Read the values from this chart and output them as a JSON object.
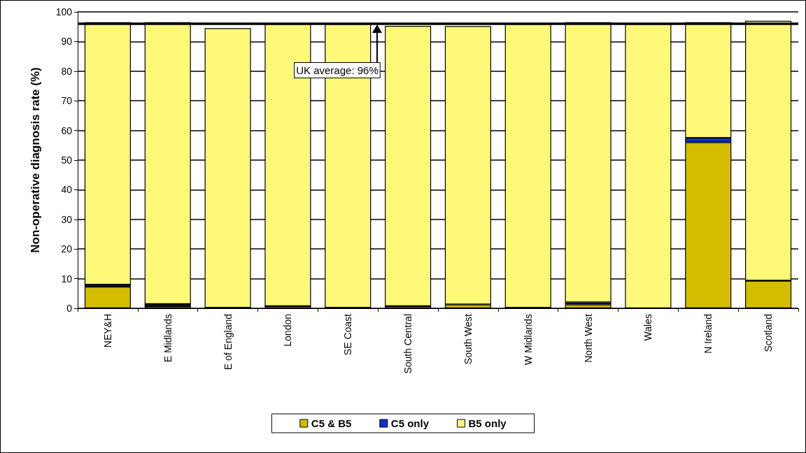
{
  "chart_data": {
    "type": "bar",
    "stacked": true,
    "ylabel": "Non-operative diagnosis rate (%)",
    "categories": [
      "NEY&H",
      "E Midlands",
      "E of England",
      "London",
      "SE Coast",
      "South Central",
      "South West",
      "W Midlands",
      "North West",
      "Wales",
      "N Ireland",
      "Scotland"
    ],
    "series": [
      {
        "name": "C5 & B5",
        "color": "#d4bc00",
        "values": [
          7.3,
          0.7,
          0.2,
          0.7,
          0.2,
          0.7,
          1.3,
          0.2,
          1.3,
          0,
          56,
          9.3
        ]
      },
      {
        "name": "C5 only",
        "color": "#1030d0",
        "values": [
          0.7,
          0.7,
          0,
          0,
          0,
          0,
          null,
          0,
          0.7,
          0,
          1.5,
          0
        ]
      },
      {
        "name": "B5 only",
        "color": "#fff97a",
        "values": [
          88.5,
          95.1,
          94.3,
          95.3,
          95.8,
          94.6,
          93.9,
          95.8,
          94.5,
          96,
          39,
          87.7
        ]
      }
    ],
    "ylim": [
      0,
      100
    ],
    "yticks": [
      0,
      10,
      20,
      30,
      40,
      50,
      60,
      70,
      80,
      90,
      100
    ],
    "grid": "y",
    "legend": "bottom",
    "ref_lines": [
      {
        "axis": "y",
        "value": 96,
        "label": "UK average: 96%",
        "color": "#000000"
      }
    ]
  }
}
